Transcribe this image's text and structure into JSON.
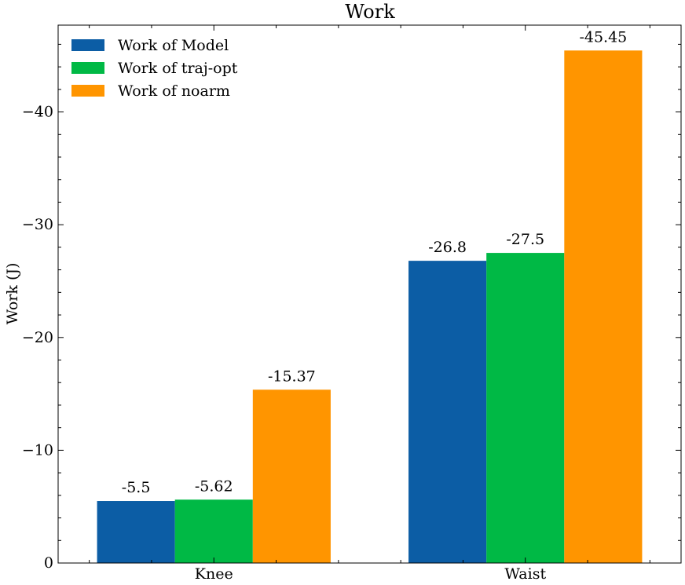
{
  "chart_data": {
    "type": "bar",
    "title": "Work",
    "xlabel": "",
    "ylabel": "Work (J)",
    "categories": [
      "Knee",
      "Waist"
    ],
    "series": [
      {
        "name": "Work of Model",
        "values": [
          -5.5,
          -26.8
        ],
        "labels": [
          "-5.5",
          "-26.8"
        ],
        "color": "#0c5da5"
      },
      {
        "name": "Work of traj-opt",
        "values": [
          -5.62,
          -27.5
        ],
        "labels": [
          "-5.62",
          "-27.5"
        ],
        "color": "#00b945"
      },
      {
        "name": "Work of noarm",
        "values": [
          -15.37,
          -45.45
        ],
        "labels": [
          "-15.37",
          "-45.45"
        ],
        "color": "#ff9500"
      }
    ],
    "ylim": [
      0,
      -47.7
    ],
    "y_inverted": true,
    "yticks": [
      0,
      -10,
      -20,
      -30,
      -40
    ],
    "ytick_labels": [
      "0",
      "−10",
      "−20",
      "−30",
      "−40"
    ],
    "grid": false,
    "legend_position": "top-left"
  }
}
